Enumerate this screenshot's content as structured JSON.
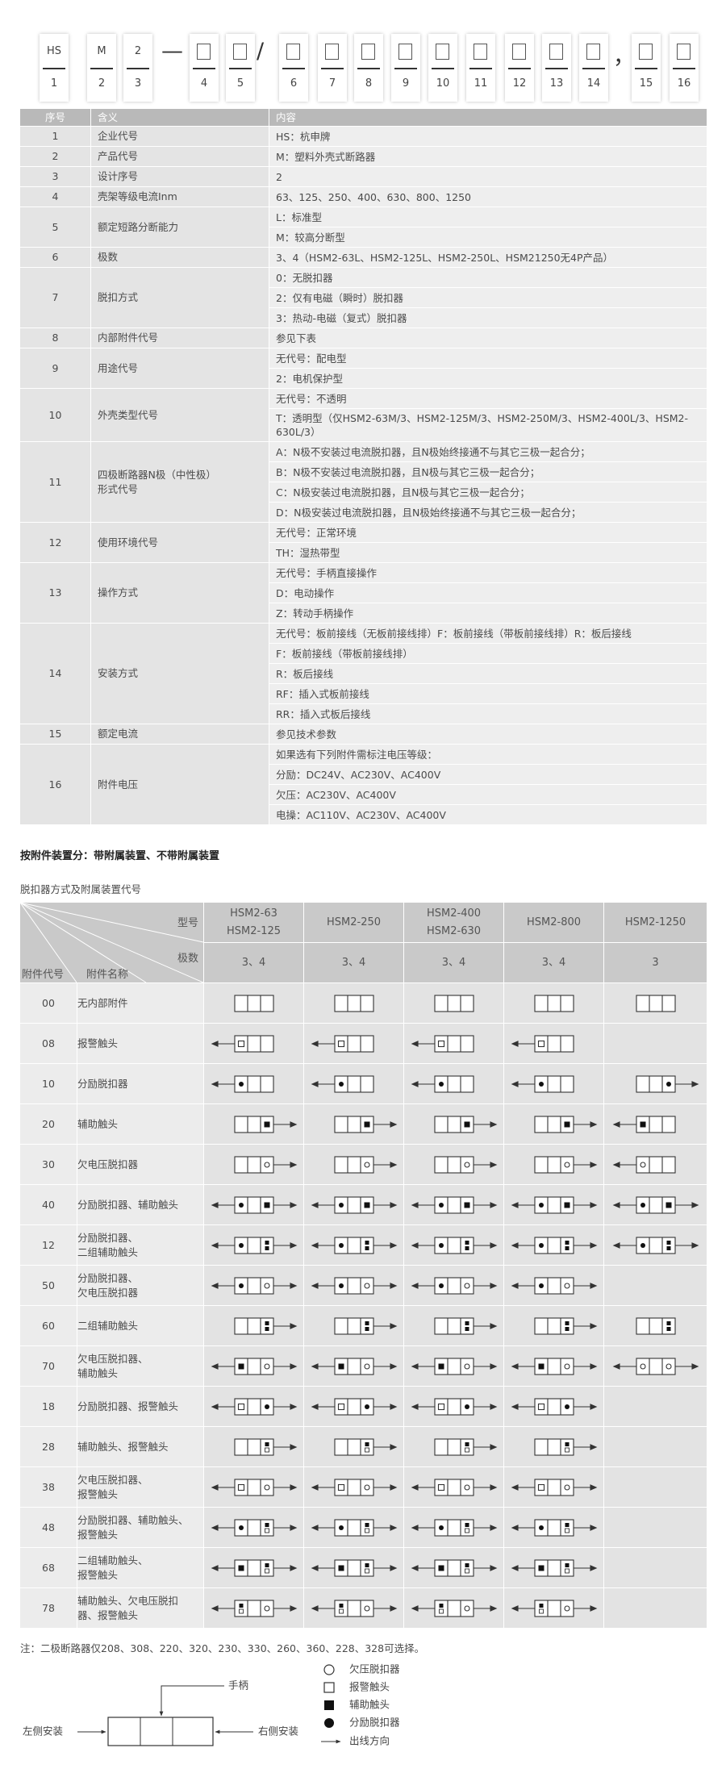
{
  "code": {
    "boxes": [
      {
        "top": "HS",
        "bottom": "1"
      },
      {
        "top": "M",
        "bottom": "2"
      },
      {
        "top": "2",
        "bottom": "3"
      },
      {
        "bottom": "4"
      },
      {
        "bottom": "5"
      },
      {
        "bottom": "6"
      },
      {
        "bottom": "7"
      },
      {
        "bottom": "8"
      },
      {
        "bottom": "9"
      },
      {
        "bottom": "10"
      },
      {
        "bottom": "11"
      },
      {
        "bottom": "12"
      },
      {
        "bottom": "13"
      },
      {
        "bottom": "14"
      },
      {
        "bottom": "15"
      },
      {
        "bottom": "16"
      }
    ],
    "separators": [
      "—",
      "/",
      "，"
    ]
  },
  "table1": {
    "header": [
      "序号",
      "含义",
      "内容"
    ],
    "rows": [
      {
        "no": "1",
        "name": [
          "企业代号"
        ],
        "content": [
          "HS：杭申牌"
        ]
      },
      {
        "no": "2",
        "name": [
          "产品代号"
        ],
        "content": [
          "M：塑料外壳式断路器"
        ]
      },
      {
        "no": "3",
        "name": [
          "设计序号"
        ],
        "content": [
          "2"
        ]
      },
      {
        "no": "4",
        "name": [
          "壳架等级电流Inm"
        ],
        "content": [
          "63、125、250、400、630、800、1250"
        ]
      },
      {
        "no": "5",
        "name": [
          "额定短路分断能力"
        ],
        "content": [
          "L：标准型",
          "M：较高分断型"
        ]
      },
      {
        "no": "6",
        "name": [
          "极数"
        ],
        "content": [
          "3、4（HSM2-63L、HSM2-125L、HSM2-250L、HSM21250无4P产品）"
        ]
      },
      {
        "no": "7",
        "name": [
          "脱扣方式"
        ],
        "content": [
          "0：无脱扣器",
          "2：仅有电磁（瞬时）脱扣器",
          "3：热动-电磁（复式）脱扣器"
        ]
      },
      {
        "no": "8",
        "name": [
          "内部附件代号"
        ],
        "content": [
          "参见下表"
        ]
      },
      {
        "no": "9",
        "name": [
          "用途代号"
        ],
        "content": [
          "无代号：配电型",
          "2：电机保护型"
        ]
      },
      {
        "no": "10",
        "name": [
          "外壳类型代号"
        ],
        "content": [
          "无代号：不透明",
          "T：透明型（仅HSM2-63M/3、HSM2-125M/3、HSM2-250M/3、HSM2-400L/3、HSM2-630L/3）"
        ]
      },
      {
        "no": "11",
        "name": [
          "四极断路器N极（中性极）",
          "形式代号"
        ],
        "content": [
          "A：N极不安装过电流脱扣器，且N极始终接通不与其它三极一起合分；",
          "B：N极不安装过电流脱扣器，且N极与其它三极一起合分；",
          "C：N极安装过电流脱扣器，且N极与其它三极一起合分；",
          "D：N极安装过电流脱扣器，且N极始终接通不与其它三极一起合分；"
        ]
      },
      {
        "no": "12",
        "name": [
          "使用环境代号"
        ],
        "content": [
          "无代号：正常环境",
          "TH：湿热带型"
        ]
      },
      {
        "no": "13",
        "name": [
          "操作方式"
        ],
        "content": [
          "无代号：手柄直接操作",
          "D：电动操作",
          "Z：转动手柄操作"
        ]
      },
      {
        "no": "14",
        "name": [
          "安装方式"
        ],
        "content": [
          "无代号：板前接线（无板前接线排）F：板前接线（带板前接线排）R：板后接线",
          "F：板前接线（带板前接线排）",
          "R：板后接线",
          "RF：插入式板前接线",
          "RR：插入式板后接线"
        ]
      },
      {
        "no": "15",
        "name": [
          "额定电流"
        ],
        "content": [
          "参见技术参数"
        ]
      },
      {
        "no": "16",
        "name": [
          "附件电压"
        ],
        "content": [
          "如果选有下列附件需标注电压等级：",
          "分励：DC24V、AC230V、AC400V",
          "欠压：AC230V、AC400V",
          "电操：AC110V、AC230V、AC400V"
        ]
      }
    ]
  },
  "note": "按附件装置分：带附属装置、不带附属装置",
  "caption": "脱扣器方式及附属装置代号",
  "table2": {
    "model_label": "型号",
    "poles_label": "极数",
    "code_label": "附件代号",
    "name_label": "附件名称",
    "models": [
      [
        "HSM2-63",
        "HSM2-125"
      ],
      [
        "HSM2-250"
      ],
      [
        "HSM2-400",
        "HSM2-630"
      ],
      [
        "HSM2-800"
      ],
      [
        "HSM2-1250"
      ]
    ],
    "poles": [
      "3、4",
      "3、4",
      "3、4",
      "3、4",
      "3"
    ],
    "rows": [
      {
        "code": "00",
        "name": [
          "无内部附件"
        ]
      },
      {
        "code": "08",
        "name": [
          "报警触头"
        ]
      },
      {
        "code": "10",
        "name": [
          "分励脱扣器"
        ]
      },
      {
        "code": "20",
        "name": [
          "辅助触头"
        ]
      },
      {
        "code": "30",
        "name": [
          "欠电压脱扣器"
        ]
      },
      {
        "code": "40",
        "name": [
          "分励脱扣器、辅助触头"
        ]
      },
      {
        "code": "12",
        "name": [
          "分励脱扣器、",
          "二组辅助触头"
        ]
      },
      {
        "code": "50",
        "name": [
          "分励脱扣器、",
          "欠电压脱扣器"
        ]
      },
      {
        "code": "60",
        "name": [
          "二组辅助触头"
        ]
      },
      {
        "code": "70",
        "name": [
          "欠电压脱扣器、",
          "辅助触头"
        ]
      },
      {
        "code": "18",
        "name": [
          "分励脱扣器、报警触头"
        ]
      },
      {
        "code": "28",
        "name": [
          "辅助触头、报警触头"
        ]
      },
      {
        "code": "38",
        "name": [
          "欠电压脱扣器、",
          "报警触头"
        ]
      },
      {
        "code": "48",
        "name": [
          "分励脱扣器、辅助触头、",
          "报警触头"
        ]
      },
      {
        "code": "68",
        "name": [
          "二组辅助触头、",
          "报警触头"
        ]
      },
      {
        "code": "78",
        "name": [
          "辅助触头、欠电压脱扣",
          "器、报警触头"
        ]
      }
    ]
  },
  "footnote": "注：二极断路器仅208、308、220、320、230、330、260、360、228、328可选择。",
  "legend": {
    "items": [
      "欠压脱扣器",
      "报警触头",
      "辅助触头",
      "分励脱扣器",
      "出线方向"
    ],
    "handle": "手柄",
    "left": "左侧安装",
    "right": "右侧安装"
  }
}
